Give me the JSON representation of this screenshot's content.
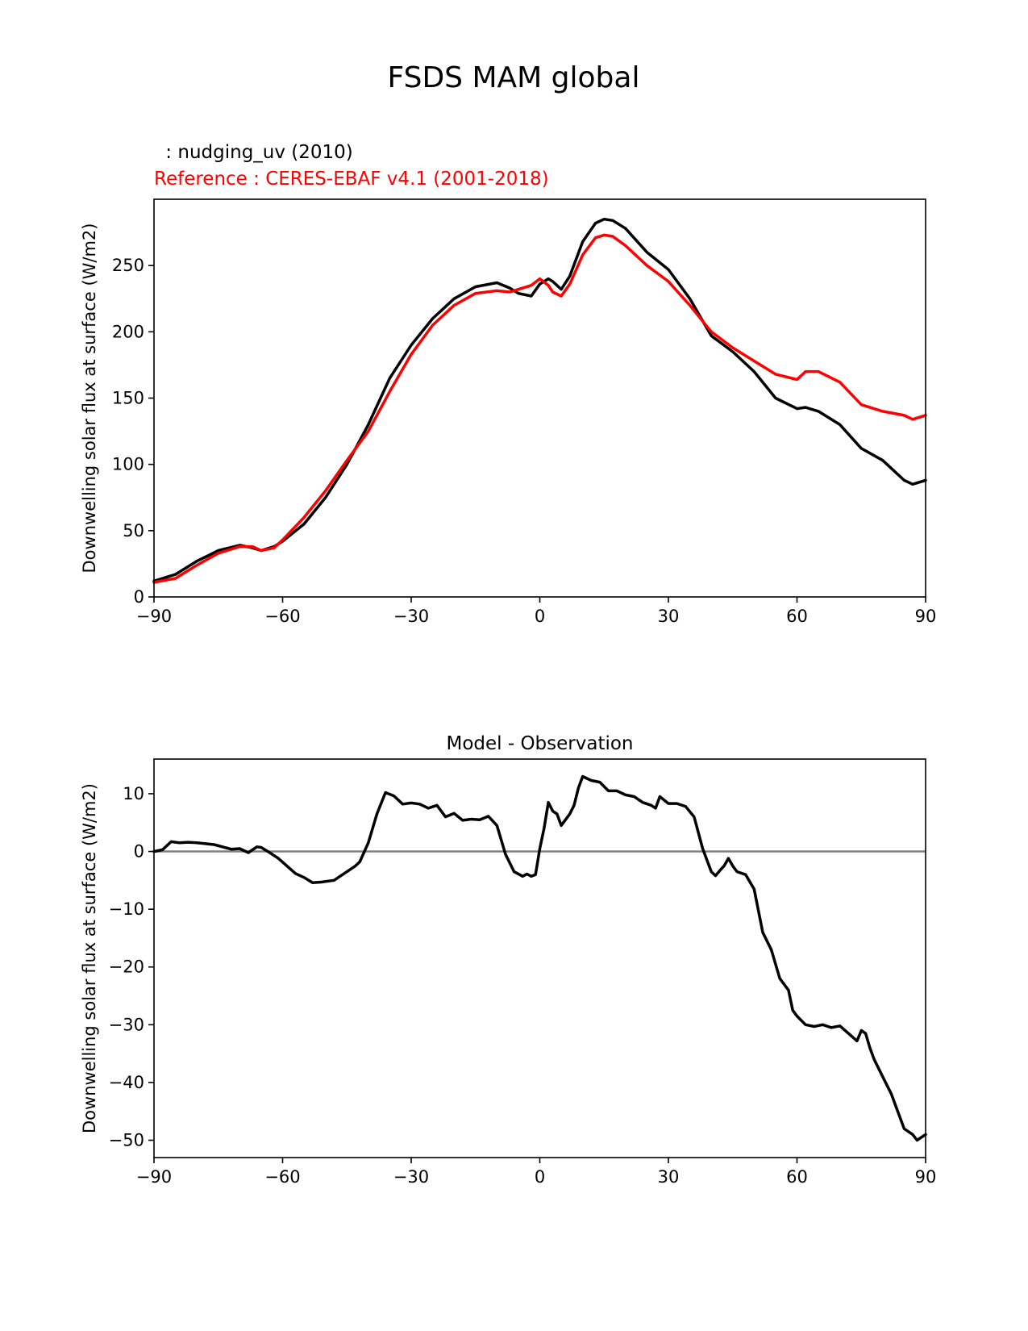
{
  "figure": {
    "title": "FSDS MAM global",
    "test_label": " : nudging_uv (2010)",
    "ref_label": "Reference : CERES-EBAF v4.1 (2001-2018)"
  },
  "chart_data": [
    {
      "type": "line",
      "title": "",
      "xlabel": "",
      "ylabel": "Downwelling solar flux at surface (W/m2)",
      "xlim": [
        -90,
        90
      ],
      "ylim": [
        0,
        300
      ],
      "xticks": [
        -90,
        -60,
        -30,
        0,
        30,
        60,
        90
      ],
      "xtick_labels": [
        "−90",
        "−60",
        "−30",
        "0",
        "30",
        "60",
        "90"
      ],
      "yticks": [
        0,
        50,
        100,
        150,
        200,
        250
      ],
      "ytick_labels": [
        "0",
        "50",
        "100",
        "150",
        "200",
        "250"
      ],
      "grid": false,
      "x": [
        -90,
        -85,
        -80,
        -75,
        -70,
        -67,
        -65,
        -62,
        -60,
        -55,
        -50,
        -45,
        -40,
        -35,
        -30,
        -25,
        -20,
        -15,
        -10,
        -7,
        -5,
        -2,
        0,
        2,
        3,
        5,
        7,
        10,
        13,
        15,
        17,
        20,
        25,
        30,
        35,
        40,
        45,
        50,
        55,
        60,
        62,
        65,
        70,
        75,
        80,
        85,
        87,
        90
      ],
      "series": [
        {
          "name": "",
          "color": "#000000",
          "values": [
            12,
            17,
            27,
            35,
            39,
            37,
            35,
            38,
            42,
            55,
            75,
            100,
            130,
            165,
            190,
            210,
            225,
            234,
            237,
            233,
            229,
            227,
            236,
            240,
            238,
            232,
            242,
            268,
            282,
            285,
            284,
            278,
            260,
            247,
            225,
            197,
            185,
            170,
            150,
            142,
            143,
            140,
            130,
            112,
            103,
            88,
            85,
            88
          ]
        },
        {
          "name": "",
          "color": "#ff0000",
          "values": [
            11,
            14,
            24,
            33,
            38,
            38,
            35,
            37,
            43,
            60,
            80,
            103,
            125,
            155,
            183,
            205,
            220,
            229,
            231,
            230,
            232,
            235,
            240,
            235,
            230,
            227,
            236,
            258,
            271,
            273,
            272,
            265,
            250,
            238,
            220,
            200,
            188,
            178,
            168,
            164,
            170,
            170,
            162,
            145,
            140,
            137,
            134,
            137
          ]
        }
      ]
    },
    {
      "type": "line",
      "title": "Model - Observation",
      "xlabel": "",
      "ylabel": "Downwelling solar flux at surface (W/m2)",
      "xlim": [
        -90,
        90
      ],
      "ylim": [
        -53,
        16
      ],
      "xticks": [
        -90,
        -60,
        -30,
        0,
        30,
        60,
        90
      ],
      "xtick_labels": [
        "−90",
        "−60",
        "−30",
        "0",
        "30",
        "60",
        "90"
      ],
      "yticks": [
        10,
        0,
        -10,
        -20,
        -30,
        -40,
        -50
      ],
      "ytick_labels": [
        "10",
        "0",
        "−10",
        "−20",
        "−30",
        "−40",
        "−50"
      ],
      "grid": false,
      "reference_line": {
        "y": 0,
        "color": "#808080"
      },
      "x": [
        -90,
        -88,
        -86,
        -84,
        -82,
        -80,
        -76,
        -72,
        -70,
        -68,
        -66,
        -65,
        -63,
        -61,
        -59,
        -57,
        -55,
        -53,
        -51,
        -48,
        -45,
        -43,
        -42,
        -40,
        -38,
        -36,
        -34,
        -32,
        -30,
        -28,
        -26,
        -24,
        -22,
        -20,
        -18,
        -16,
        -14,
        -12,
        -10,
        -8,
        -6,
        -4,
        -3,
        -2,
        -1,
        0,
        1,
        2,
        3,
        4,
        5,
        6,
        7,
        8,
        9,
        10,
        12,
        14,
        16,
        18,
        20,
        22,
        24,
        26,
        27,
        28,
        30,
        32,
        34,
        36,
        38,
        40,
        41,
        42,
        43,
        44,
        45,
        46,
        48,
        50,
        52,
        54,
        56,
        58,
        59,
        60,
        62,
        64,
        66,
        68,
        70,
        72,
        74,
        75,
        76,
        77,
        78,
        80,
        82,
        83,
        85,
        87,
        88,
        89,
        90
      ],
      "series": [
        {
          "name": "",
          "color": "#000000",
          "values": [
            0,
            0.3,
            1.7,
            1.5,
            1.6,
            1.5,
            1.2,
            0.4,
            0.5,
            -0.2,
            0.8,
            0.7,
            -0.2,
            -1.2,
            -2.5,
            -3.8,
            -4.5,
            -5.4,
            -5.3,
            -5,
            -3.5,
            -2.5,
            -1.8,
            1.5,
            6.5,
            10.2,
            9.6,
            8.2,
            8.4,
            8.2,
            7.5,
            8,
            6,
            6.6,
            5.4,
            5.6,
            5.5,
            6.1,
            4.5,
            -0.5,
            -3.5,
            -4.3,
            -3.9,
            -4.3,
            -4,
            0.5,
            4,
            8.5,
            7,
            6.5,
            4.5,
            5.5,
            6.5,
            8,
            11,
            13,
            12.3,
            12,
            10.5,
            10.5,
            9.8,
            9.5,
            8.5,
            8,
            7.5,
            9.5,
            8.3,
            8.3,
            7.8,
            6,
            0.5,
            -3.5,
            -4.2,
            -3.3,
            -2.5,
            -1.2,
            -2.5,
            -3.5,
            -4,
            -6.5,
            -14,
            -17,
            -22,
            -24,
            -27.5,
            -28.5,
            -30,
            -30.3,
            -30,
            -30.5,
            -30.2,
            -31.5,
            -32.8,
            -31,
            -31.5,
            -34,
            -36,
            -39,
            -42,
            -44,
            -48,
            -49,
            -50,
            -49.5,
            -49
          ]
        }
      ]
    }
  ]
}
